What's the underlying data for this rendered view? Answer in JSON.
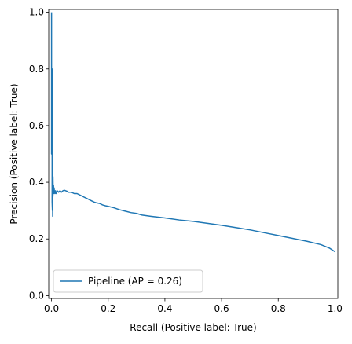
{
  "chart_data": {
    "type": "line",
    "title": "",
    "xlabel": "Recall (Positive label: True)",
    "ylabel": "Precision (Positive label: True)",
    "xlim": [
      -0.01,
      1.01
    ],
    "ylim": [
      -0.01,
      1.01
    ],
    "xticks": [
      "0.0",
      "0.2",
      "0.4",
      "0.6",
      "0.8",
      "1.0"
    ],
    "yticks": [
      "0.0",
      "0.2",
      "0.4",
      "0.6",
      "0.8",
      "1.0"
    ],
    "grid": false,
    "legend": {
      "position": "lower-left"
    },
    "series": [
      {
        "name": "Pipeline (AP = 0.26)",
        "color": "#1f77b4",
        "x": [
          0.0,
          0.0,
          0.002,
          0.002,
          0.003,
          0.003,
          0.004,
          0.004,
          0.005,
          0.005,
          0.006,
          0.007,
          0.008,
          0.009,
          0.01,
          0.012,
          0.014,
          0.016,
          0.018,
          0.02,
          0.025,
          0.03,
          0.035,
          0.04,
          0.045,
          0.05,
          0.055,
          0.06,
          0.07,
          0.08,
          0.09,
          0.1,
          0.11,
          0.12,
          0.13,
          0.14,
          0.15,
          0.16,
          0.17,
          0.18,
          0.19,
          0.2,
          0.22,
          0.24,
          0.26,
          0.28,
          0.3,
          0.32,
          0.35,
          0.4,
          0.45,
          0.5,
          0.55,
          0.6,
          0.65,
          0.7,
          0.75,
          0.8,
          0.85,
          0.9,
          0.95,
          0.98,
          1.0
        ],
        "y": [
          1.0,
          0.5,
          0.8,
          0.33,
          0.3,
          0.5,
          0.28,
          0.44,
          0.35,
          0.42,
          0.36,
          0.39,
          0.36,
          0.38,
          0.37,
          0.36,
          0.37,
          0.36,
          0.365,
          0.37,
          0.365,
          0.37,
          0.365,
          0.37,
          0.372,
          0.37,
          0.368,
          0.365,
          0.365,
          0.36,
          0.36,
          0.355,
          0.35,
          0.345,
          0.34,
          0.335,
          0.33,
          0.327,
          0.325,
          0.32,
          0.317,
          0.315,
          0.31,
          0.303,
          0.298,
          0.293,
          0.29,
          0.284,
          0.28,
          0.274,
          0.267,
          0.262,
          0.255,
          0.248,
          0.24,
          0.232,
          0.222,
          0.212,
          0.202,
          0.192,
          0.18,
          0.168,
          0.155
        ]
      }
    ]
  }
}
